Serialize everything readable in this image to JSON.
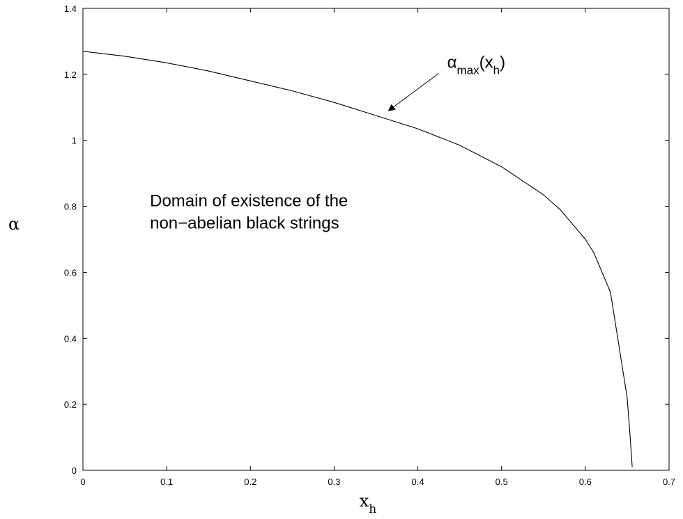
{
  "chart_data": {
    "type": "line",
    "xlabel": "x",
    "xlabel_subscript": "h",
    "ylabel": "α",
    "xlim": [
      0,
      0.7
    ],
    "ylim": [
      0,
      1.4
    ],
    "x_ticks": [
      "0",
      "0.1",
      "0.2",
      "0.3",
      "0.4",
      "0.5",
      "0.6",
      "0.7"
    ],
    "y_ticks": [
      "0",
      "0.2",
      "0.4",
      "0.6",
      "0.8",
      "1",
      "1.2",
      "1.4"
    ],
    "grid": false,
    "series": [
      {
        "x": [
          0,
          0.05,
          0.1,
          0.15,
          0.2,
          0.25,
          0.3,
          0.35,
          0.4,
          0.45,
          0.5,
          0.55,
          0.57,
          0.6,
          0.61,
          0.62,
          0.63,
          0.64,
          0.65,
          0.653,
          0.655,
          0.656
        ],
        "y": [
          1.27,
          1.255,
          1.235,
          1.21,
          1.18,
          1.15,
          1.115,
          1.075,
          1.035,
          0.985,
          0.92,
          0.835,
          0.79,
          0.7,
          0.66,
          0.6,
          0.54,
          0.38,
          0.22,
          0.12,
          0.05,
          0.01
        ]
      }
    ],
    "annotations": [
      {
        "base": "α",
        "sub1": "max",
        "paren_open": "(x",
        "sub2": "h",
        "paren_close": ")",
        "arrow_to": [
          0.365,
          1.09
        ],
        "text_at": [
          0.435,
          1.22
        ]
      },
      {
        "lines": [
          "Domain of existence of the",
          "non−abelian black strings"
        ],
        "at": [
          0.08,
          0.8
        ]
      }
    ]
  }
}
